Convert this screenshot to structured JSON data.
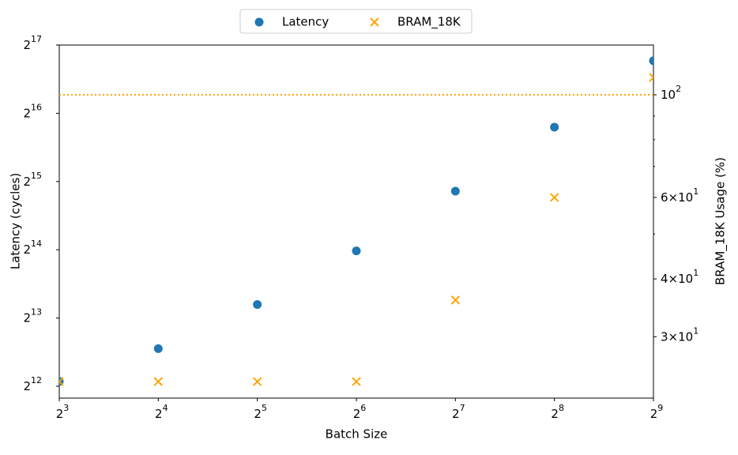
{
  "chart_data": {
    "type": "scatter",
    "xlabel": "Batch Size",
    "ylabel": "Latency (cycles)",
    "y2label": "BRAM_18K Usage (%)",
    "x": [
      8,
      16,
      32,
      64,
      128,
      256,
      512
    ],
    "xlim": [
      8,
      512
    ],
    "xscale": "log2",
    "xticks": [
      {
        "value": 8,
        "label": "2^3"
      },
      {
        "value": 16,
        "label": "2^4"
      },
      {
        "value": 32,
        "label": "2^5"
      },
      {
        "value": 64,
        "label": "2^6"
      },
      {
        "value": 128,
        "label": "2^7"
      },
      {
        "value": 256,
        "label": "2^8"
      },
      {
        "value": 512,
        "label": "2^9"
      }
    ],
    "ylim": [
      3631,
      131072
    ],
    "yscale": "log2",
    "yticks": [
      {
        "value": 4096,
        "label": "2^12"
      },
      {
        "value": 8192,
        "label": "2^13"
      },
      {
        "value": 16384,
        "label": "2^14"
      },
      {
        "value": 32768,
        "label": "2^15"
      },
      {
        "value": 65536,
        "label": "2^16"
      },
      {
        "value": 131072,
        "label": "2^17"
      }
    ],
    "y2lim": [
      22.1,
      128.1
    ],
    "y2scale": "log10",
    "y2ticks": [
      {
        "value": 30,
        "label": "3×10^1"
      },
      {
        "value": 40,
        "label": "4×10^1"
      },
      {
        "value": 60,
        "label": "6×10^1"
      },
      {
        "value": 100,
        "label": "10^2"
      }
    ],
    "y2minorticks": [
      50,
      70,
      80,
      90
    ],
    "series": [
      {
        "name": "Latency",
        "color": "#1f77b4",
        "marker": "circle",
        "values": [
          4300,
          6000,
          9400,
          16200,
          29700,
          56900,
          111700
        ]
      },
      {
        "name": "BRAM_18K",
        "color": "#ffa500",
        "marker": "x",
        "axis": "y2",
        "values": [
          24,
          24,
          24,
          24,
          36,
          60,
          109
        ]
      }
    ],
    "hline": {
      "value": 100,
      "axis": "y2",
      "color": "#ffa500"
    },
    "legend": "upper center"
  }
}
